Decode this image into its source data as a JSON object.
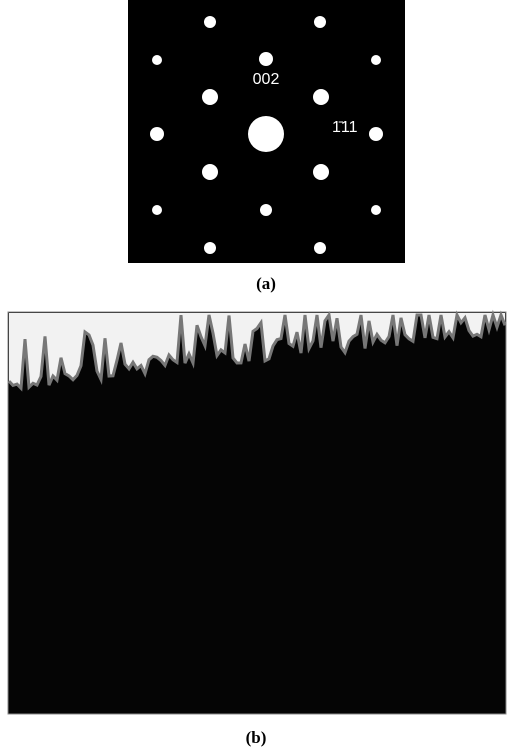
{
  "panel_a": {
    "spot_labels": [
      "002",
      "1̄11"
    ],
    "caption": "(a)"
  },
  "panel_b": {
    "caption": "(b)"
  }
}
